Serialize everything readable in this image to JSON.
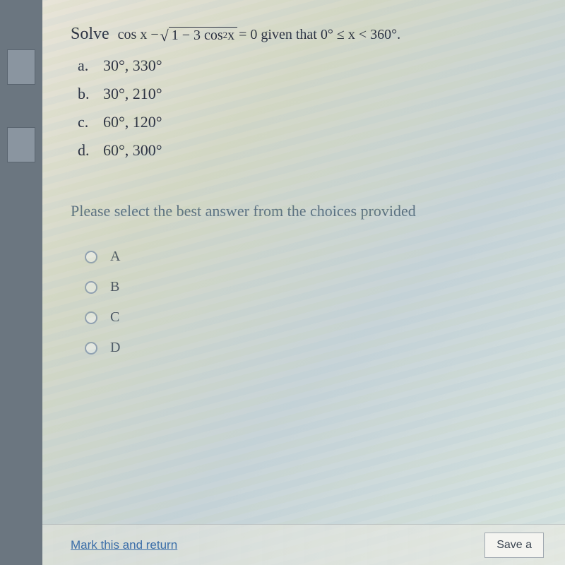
{
  "question": {
    "solve_label": "Solve",
    "equation_prefix": "cos x −",
    "sqrt_inner_a": "1 − 3 cos",
    "sqrt_inner_exp": "2",
    "sqrt_inner_b": " x",
    "equation_suffix": " = 0 given that 0° ≤ x < 360°."
  },
  "options": [
    {
      "letter": "a.",
      "text": "30°, 330°"
    },
    {
      "letter": "b.",
      "text": "30°, 210°"
    },
    {
      "letter": "c.",
      "text": "60°, 120°"
    },
    {
      "letter": "d.",
      "text": "60°, 300°"
    }
  ],
  "prompt": "Please select the best answer from the choices provided",
  "answers": [
    {
      "label": "A"
    },
    {
      "label": "B"
    },
    {
      "label": "C"
    },
    {
      "label": "D"
    }
  ],
  "footer": {
    "mark_link": "Mark this and return",
    "save_label": "Save a"
  },
  "style": {
    "body_bg": "#7a8590",
    "left_strip_bg": "#6b7680",
    "content_bg_a": "#e8e4d8",
    "content_bg_b": "#d8e4e0",
    "text_color": "#2a3040",
    "prompt_color": "#5a7080",
    "link_color": "#3b6ea8",
    "radio_border": "#90a0b0",
    "font_main": "Georgia, serif",
    "title_fontsize": 24,
    "option_fontsize": 22
  }
}
